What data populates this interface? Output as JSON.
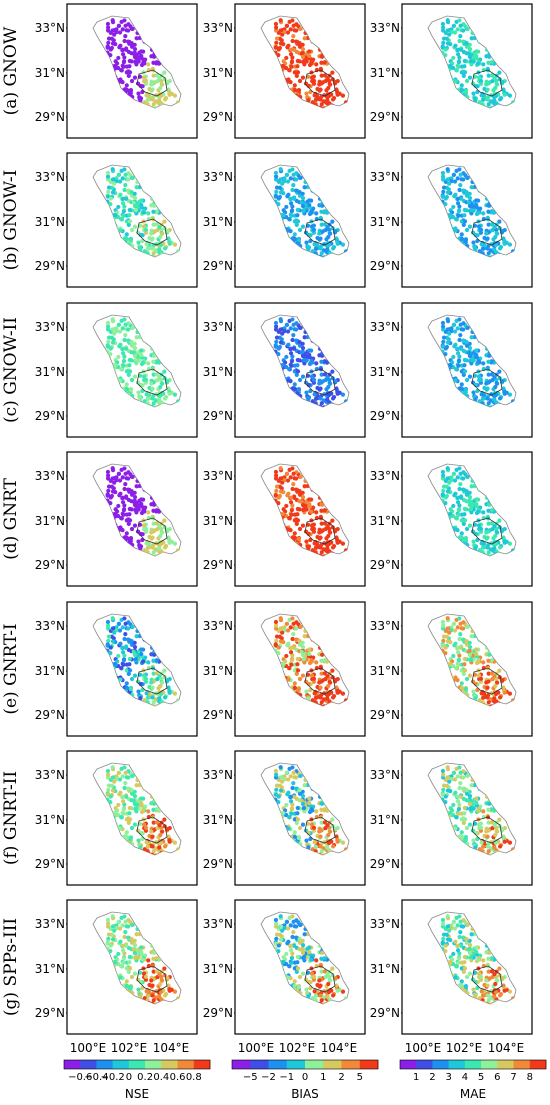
{
  "chart_data": {
    "type": "scatter",
    "description_rows": [
      "GNOW",
      "GNOW-I",
      "GNOW-II",
      "GNRT",
      "GNRT-I",
      "GNRT-II",
      "SPPs-III"
    ],
    "row_labels": [
      "(a) GNOW",
      "(b) GNOW-I",
      "(c) GNOW-II",
      "(d) GNRT",
      "(e) GNRT-I",
      "(f) GNRT-II",
      "(g) SPPs-III"
    ],
    "columns": [
      "NSE",
      "BIAS",
      "MAE"
    ],
    "y_ticks": [
      "33°N",
      "31°N",
      "29°N"
    ],
    "y_tick_values": [
      33,
      31,
      29
    ],
    "x_ticks": [
      "100°E",
      "102°E",
      "104°E"
    ],
    "x_tick_values": [
      100,
      102,
      104
    ],
    "xlim": [
      98,
      106
    ],
    "ylim": [
      27.5,
      34.5
    ],
    "grid": false,
    "colorbars": [
      {
        "label": "NSE",
        "ticks": [
          "−0.6",
          "−0.4",
          "−0.2",
          "0",
          "0.2",
          "0.4",
          "0.6",
          "0.8"
        ],
        "colors": [
          "#8b1fe8",
          "#3f4fe6",
          "#1e90f0",
          "#1fc8d8",
          "#3de8b0",
          "#8ef09a",
          "#d8c860",
          "#f08a3a",
          "#f03a1a"
        ]
      },
      {
        "label": "BIAS",
        "ticks": [
          "−5",
          "−2",
          "−1",
          "0",
          "1",
          "2",
          "5"
        ],
        "colors": [
          "#8b1fe8",
          "#3f4fe6",
          "#1e90f0",
          "#1fc8d8",
          "#8ef09a",
          "#d8c860",
          "#f08a3a",
          "#f03a1a"
        ]
      },
      {
        "label": "MAE",
        "ticks": [
          "1",
          "2",
          "3",
          "4",
          "5",
          "6",
          "7",
          "8"
        ],
        "colors": [
          "#8b1fe8",
          "#3f4fe6",
          "#1e90f0",
          "#1fc8d8",
          "#3de8b0",
          "#8ef09a",
          "#d8c860",
          "#f08a3a",
          "#f03a1a"
        ]
      }
    ]
  }
}
